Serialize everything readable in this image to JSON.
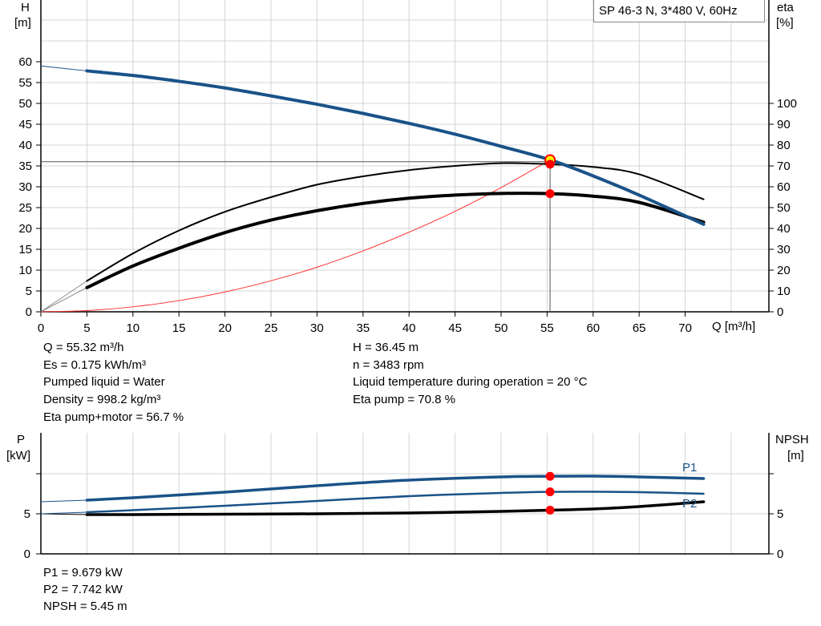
{
  "chart_data": [
    {
      "type": "line",
      "title": "SP 46-3 N, 3*480 V, 60Hz",
      "xlabel": "Q [m³/h]",
      "ylabel": "H\n[m]",
      "ylabel_line1": "H",
      "ylabel_line2": "[m]",
      "y2label_line1": "eta",
      "y2label_line2": "[%]",
      "xlim": [
        0,
        79
      ],
      "ylim": [
        0,
        75
      ],
      "y2lim": [
        0,
        150
      ],
      "grid": true,
      "x_ticks": [
        0,
        5,
        10,
        15,
        20,
        25,
        30,
        35,
        40,
        45,
        50,
        55,
        60,
        65,
        70
      ],
      "y_ticks": [
        0,
        5,
        10,
        15,
        20,
        25,
        30,
        35,
        40,
        45,
        50,
        55,
        60
      ],
      "y2_ticks": [
        0,
        10,
        20,
        30,
        40,
        50,
        60,
        70,
        80,
        90,
        100
      ],
      "x": [
        0,
        5,
        10,
        15,
        20,
        25,
        30,
        35,
        40,
        45,
        50,
        55.32,
        60,
        65,
        72
      ],
      "series": [
        {
          "key": "H",
          "axis": "left",
          "color": "#1a5288",
          "values": [
            59,
            57.8,
            56.7,
            55.3,
            53.7,
            51.8,
            49.8,
            47.6,
            45.2,
            42.6,
            39.7,
            36.45,
            32.6,
            28,
            21
          ]
        },
        {
          "key": "eta_pump",
          "axis": "right",
          "color": "#000000",
          "values": [
            0,
            14.8,
            28,
            39,
            48,
            55,
            61,
            65,
            68,
            70,
            71.3,
            70.8,
            69.5,
            66,
            54
          ]
        },
        {
          "key": "eta_pump_motor",
          "axis": "right",
          "color": "#000000",
          "values": [
            0,
            11.6,
            22,
            30.5,
            38,
            44,
            48.5,
            52,
            54.5,
            56,
            56.8,
            56.7,
            55.5,
            52.5,
            43
          ]
        }
      ],
      "system_curve": {
        "color": "#ff3030",
        "x": [
          0,
          5,
          10,
          15,
          20,
          25,
          30,
          35,
          40,
          45,
          50,
          55.32
        ],
        "values": [
          0,
          0.3,
          1.19,
          2.68,
          4.76,
          7.44,
          10.7,
          14.6,
          19.1,
          24.1,
          29.8,
          36.45
        ]
      },
      "duty_point": {
        "Q": 55.32,
        "H": 36.45,
        "eta_pump": 70.8,
        "eta_pump_motor": 56.7,
        "marker_color": "#ff0000",
        "ring_fill": "#ffff00"
      }
    },
    {
      "type": "line",
      "ylabel_line1": "P",
      "ylabel_line2": "[kW]",
      "y2label_line1": "NPSH",
      "y2label_line2": "[m]",
      "xlim": [
        0,
        79
      ],
      "ylim": [
        0,
        15
      ],
      "y_ticks": [
        0,
        5
      ],
      "y2_ticks": [
        0,
        5
      ],
      "grid": true,
      "x": [
        0,
        5,
        10,
        20,
        30,
        40,
        50,
        55.32,
        60,
        65,
        72
      ],
      "series": [
        {
          "name": "P1",
          "color": "#1a5288",
          "values": [
            6.5,
            6.7,
            7.0,
            7.7,
            8.5,
            9.2,
            9.6,
            9.68,
            9.7,
            9.6,
            9.4
          ]
        },
        {
          "name": "P2",
          "color": "#1a5288",
          "values": [
            5.0,
            5.2,
            5.45,
            6.0,
            6.6,
            7.2,
            7.6,
            7.74,
            7.75,
            7.7,
            7.5
          ]
        },
        {
          "key": "NPSH",
          "color": "#000000",
          "values": [
            5.0,
            4.9,
            4.9,
            4.95,
            5.0,
            5.1,
            5.3,
            5.45,
            5.6,
            5.9,
            6.5
          ]
        }
      ],
      "duty_point": {
        "Q": 55.32,
        "P1": 9.679,
        "P2": 7.742,
        "NPSH": 5.45
      }
    }
  ],
  "info": {
    "left": [
      "Q = 55.32 m³/h",
      "Es = 0.175 kWh/m³",
      "Pumped liquid = Water",
      "Density = 998.2 kg/m³",
      "Eta pump+motor = 56.7 %"
    ],
    "right": [
      "H = 36.45 m",
      "n = 3483 rpm",
      "Liquid temperature during operation = 20 °C",
      "Eta pump = 70.8 %"
    ],
    "bottom": [
      "P1 = 9.679 kW",
      "P2 = 7.742 kW",
      "NPSH = 5.45 m"
    ]
  }
}
